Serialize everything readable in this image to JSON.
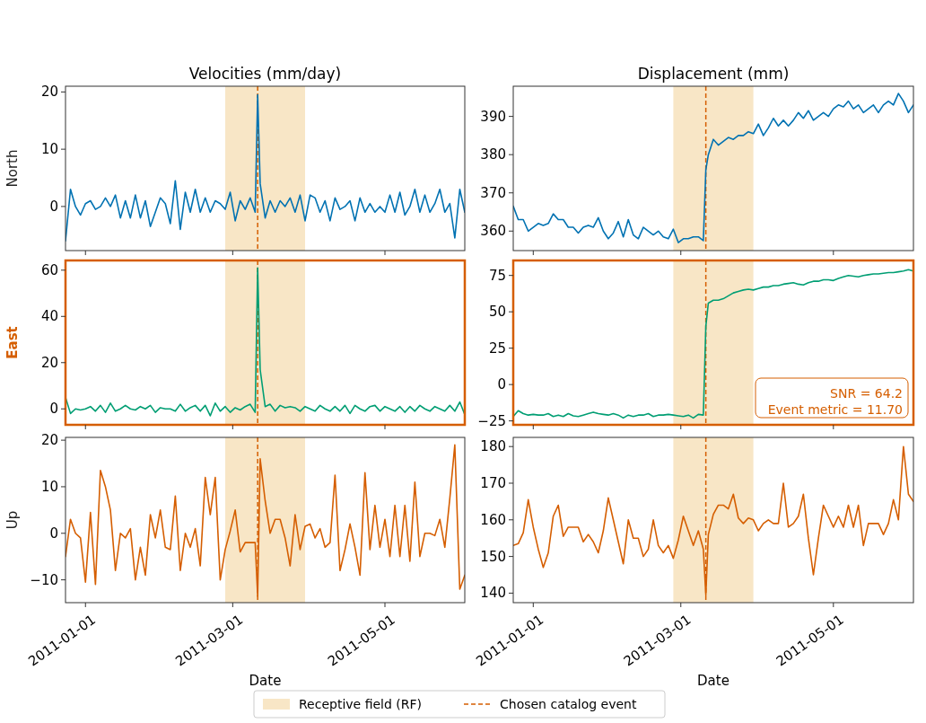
{
  "chart_data": [
    {
      "type": "line",
      "title": "Velocities (mm/day)",
      "ylabel": "North",
      "tick_labels": "y",
      "x": [
        "2010-12-24",
        "2010-12-26",
        "2010-12-28",
        "2010-12-30",
        "2011-01-01",
        "2011-01-03",
        "2011-01-05",
        "2011-01-07",
        "2011-01-09",
        "2011-01-11",
        "2011-01-13",
        "2011-01-15",
        "2011-01-17",
        "2011-01-19",
        "2011-01-21",
        "2011-01-23",
        "2011-01-25",
        "2011-01-27",
        "2011-01-29",
        "2011-01-31",
        "2011-02-02",
        "2011-02-04",
        "2011-02-06",
        "2011-02-08",
        "2011-02-10",
        "2011-02-12",
        "2011-02-14",
        "2011-02-16",
        "2011-02-18",
        "2011-02-20",
        "2011-02-22",
        "2011-02-24",
        "2011-02-26",
        "2011-02-28",
        "2011-03-02",
        "2011-03-04",
        "2011-03-06",
        "2011-03-08",
        "2011-03-10",
        "2011-03-11",
        "2011-03-12",
        "2011-03-14",
        "2011-03-16",
        "2011-03-18",
        "2011-03-20",
        "2011-03-22",
        "2011-03-24",
        "2011-03-26",
        "2011-03-28",
        "2011-03-30",
        "2011-04-01",
        "2011-04-03",
        "2011-04-05",
        "2011-04-07",
        "2011-04-09",
        "2011-04-11",
        "2011-04-13",
        "2011-04-15",
        "2011-04-17",
        "2011-04-19",
        "2011-04-21",
        "2011-04-23",
        "2011-04-25",
        "2011-04-27",
        "2011-04-29",
        "2011-05-01",
        "2011-05-03",
        "2011-05-05",
        "2011-05-07",
        "2011-05-09",
        "2011-05-11",
        "2011-05-13",
        "2011-05-15",
        "2011-05-17",
        "2011-05-19",
        "2011-05-21",
        "2011-05-23",
        "2011-05-25",
        "2011-05-27",
        "2011-05-29",
        "2011-05-31",
        "2011-06-02"
      ],
      "series": [
        {
          "color": "#0072b2",
          "values": [
            -6,
            3,
            0,
            -1.5,
            0.5,
            1,
            -0.5,
            0,
            1.5,
            0,
            2,
            -2,
            1,
            -2,
            2,
            -2,
            1,
            -3.5,
            -1,
            1.5,
            0.5,
            -3,
            4.5,
            -4,
            2.5,
            -1,
            3,
            -1,
            1.5,
            -1,
            1,
            0.5,
            -0.5,
            2.5,
            -2.5,
            1,
            -0.5,
            1.5,
            -1,
            19.5,
            4,
            -2,
            1,
            -1,
            1,
            0,
            1.5,
            -1,
            2,
            -2.5,
            2,
            1.5,
            -1,
            1,
            -2.5,
            1.5,
            -0.5,
            0,
            1,
            -2.5,
            1.5,
            -1,
            0.5,
            -1,
            0,
            -1,
            2,
            -1,
            2.5,
            -1.5,
            0,
            3,
            -1,
            2,
            -1,
            0.5,
            3,
            -1,
            0.5,
            -5.5,
            3,
            -1
          ]
        }
      ],
      "xlim": [
        "2010-12-24",
        "2011-06-02"
      ],
      "xticks": [
        "2011-01-01",
        "2011-03-01",
        "2011-05-01"
      ],
      "ylim": [
        -7.7,
        21
      ],
      "yticks": [
        0,
        10,
        20
      ],
      "bands": [
        {
          "axis": "x",
          "from": "2011-02-26",
          "to": "2011-03-30",
          "color": "#f8e6c6"
        }
      ],
      "ref_lines": [
        {
          "axis": "x",
          "value": "2011-03-11",
          "color": "#d55e00",
          "line_style": "dashed"
        }
      ]
    },
    {
      "type": "line",
      "title": "Displacement (mm)",
      "tick_labels": "y",
      "x": [
        "2010-12-24",
        "2010-12-26",
        "2010-12-28",
        "2010-12-30",
        "2011-01-01",
        "2011-01-03",
        "2011-01-05",
        "2011-01-07",
        "2011-01-09",
        "2011-01-11",
        "2011-01-13",
        "2011-01-15",
        "2011-01-17",
        "2011-01-19",
        "2011-01-21",
        "2011-01-23",
        "2011-01-25",
        "2011-01-27",
        "2011-01-29",
        "2011-01-31",
        "2011-02-02",
        "2011-02-04",
        "2011-02-06",
        "2011-02-08",
        "2011-02-10",
        "2011-02-12",
        "2011-02-14",
        "2011-02-16",
        "2011-02-18",
        "2011-02-20",
        "2011-02-22",
        "2011-02-24",
        "2011-02-26",
        "2011-02-28",
        "2011-03-02",
        "2011-03-04",
        "2011-03-06",
        "2011-03-08",
        "2011-03-10",
        "2011-03-11",
        "2011-03-12",
        "2011-03-14",
        "2011-03-16",
        "2011-03-18",
        "2011-03-20",
        "2011-03-22",
        "2011-03-24",
        "2011-03-26",
        "2011-03-28",
        "2011-03-30",
        "2011-04-01",
        "2011-04-03",
        "2011-04-05",
        "2011-04-07",
        "2011-04-09",
        "2011-04-11",
        "2011-04-13",
        "2011-04-15",
        "2011-04-17",
        "2011-04-19",
        "2011-04-21",
        "2011-04-23",
        "2011-04-25",
        "2011-04-27",
        "2011-04-29",
        "2011-05-01",
        "2011-05-03",
        "2011-05-05",
        "2011-05-07",
        "2011-05-09",
        "2011-05-11",
        "2011-05-13",
        "2011-05-15",
        "2011-05-17",
        "2011-05-19",
        "2011-05-21",
        "2011-05-23",
        "2011-05-25",
        "2011-05-27",
        "2011-05-29",
        "2011-05-31",
        "2011-06-02"
      ],
      "series": [
        {
          "color": "#0072b2",
          "values": [
            366.5,
            363,
            363,
            360,
            361,
            362,
            361.5,
            362,
            364.5,
            363,
            363,
            361,
            361,
            359.5,
            361,
            361.5,
            361,
            363.5,
            360,
            358,
            359.5,
            362.5,
            358.5,
            363,
            359,
            358,
            361,
            360,
            359,
            360,
            358.5,
            358,
            360.5,
            357,
            358,
            358,
            358.5,
            358.5,
            357.5,
            376,
            380,
            384,
            382.5,
            383.5,
            384.5,
            384,
            385,
            385,
            386,
            385.5,
            388,
            385,
            387,
            389.5,
            387.5,
            389,
            387.5,
            389,
            391,
            389.5,
            391.5,
            389,
            390,
            391,
            390,
            392,
            393,
            392.5,
            394,
            392,
            393,
            391,
            392,
            393,
            391,
            393,
            394,
            393,
            396,
            394,
            391,
            393
          ]
        }
      ],
      "xlim": [
        "2010-12-24",
        "2011-06-02"
      ],
      "xticks": [
        "2011-01-01",
        "2011-03-01",
        "2011-05-01"
      ],
      "ylim": [
        354.9,
        397.9
      ],
      "yticks": [
        360,
        370,
        380,
        390
      ],
      "bands": [
        {
          "axis": "x",
          "from": "2011-02-26",
          "to": "2011-03-30",
          "color": "#f8e6c6"
        }
      ],
      "ref_lines": [
        {
          "axis": "x",
          "value": "2011-03-11",
          "color": "#d55e00",
          "line_style": "dashed"
        }
      ]
    },
    {
      "type": "line",
      "ylabel": "East",
      "tick_labels": "y",
      "x": [
        "2010-12-24",
        "2010-12-26",
        "2010-12-28",
        "2010-12-30",
        "2011-01-01",
        "2011-01-03",
        "2011-01-05",
        "2011-01-07",
        "2011-01-09",
        "2011-01-11",
        "2011-01-13",
        "2011-01-15",
        "2011-01-17",
        "2011-01-19",
        "2011-01-21",
        "2011-01-23",
        "2011-01-25",
        "2011-01-27",
        "2011-01-29",
        "2011-01-31",
        "2011-02-02",
        "2011-02-04",
        "2011-02-06",
        "2011-02-08",
        "2011-02-10",
        "2011-02-12",
        "2011-02-14",
        "2011-02-16",
        "2011-02-18",
        "2011-02-20",
        "2011-02-22",
        "2011-02-24",
        "2011-02-26",
        "2011-02-28",
        "2011-03-02",
        "2011-03-04",
        "2011-03-06",
        "2011-03-08",
        "2011-03-10",
        "2011-03-11",
        "2011-03-12",
        "2011-03-14",
        "2011-03-16",
        "2011-03-18",
        "2011-03-20",
        "2011-03-22",
        "2011-03-24",
        "2011-03-26",
        "2011-03-28",
        "2011-03-30",
        "2011-04-01",
        "2011-04-03",
        "2011-04-05",
        "2011-04-07",
        "2011-04-09",
        "2011-04-11",
        "2011-04-13",
        "2011-04-15",
        "2011-04-17",
        "2011-04-19",
        "2011-04-21",
        "2011-04-23",
        "2011-04-25",
        "2011-04-27",
        "2011-04-29",
        "2011-05-01",
        "2011-05-03",
        "2011-05-05",
        "2011-05-07",
        "2011-05-09",
        "2011-05-11",
        "2011-05-13",
        "2011-05-15",
        "2011-05-17",
        "2011-05-19",
        "2011-05-21",
        "2011-05-23",
        "2011-05-25",
        "2011-05-27",
        "2011-05-29",
        "2011-05-31",
        "2011-06-02"
      ],
      "series": [
        {
          "color": "#009e73",
          "values": [
            5,
            -2,
            0,
            -0.5,
            0,
            1,
            -1,
            1.5,
            -1.5,
            2.5,
            -1,
            0,
            1.5,
            0,
            -0.5,
            1,
            0,
            1.5,
            -1.5,
            0.5,
            0,
            0,
            -1,
            2,
            -1,
            0.5,
            1.5,
            -1,
            1.5,
            -3,
            2.5,
            -1,
            1,
            -1.5,
            0.5,
            -0.5,
            1,
            2,
            -1.5,
            61,
            17,
            1,
            2,
            -1,
            1.5,
            0.5,
            1,
            0.5,
            -1,
            1,
            0,
            -1,
            1.5,
            0,
            -1,
            1,
            -1,
            1.5,
            -2,
            1.5,
            0,
            -1,
            1,
            1.5,
            -1,
            1,
            0,
            -1,
            1,
            -1.5,
            1,
            -1,
            1.5,
            0,
            -1,
            1,
            0,
            -1,
            1.5,
            -1,
            3,
            -2.5
          ]
        }
      ],
      "xlim": [
        "2010-12-24",
        "2011-06-02"
      ],
      "xticks": [
        "2011-01-01",
        "2011-03-01",
        "2011-05-01"
      ],
      "ylim": [
        -6.9,
        64.2
      ],
      "yticks": [
        0,
        20,
        40,
        60
      ],
      "bands": [
        {
          "axis": "x",
          "from": "2011-02-26",
          "to": "2011-03-30",
          "color": "#f8e6c6"
        }
      ],
      "ref_lines": [
        {
          "axis": "x",
          "value": "2011-03-11",
          "color": "#d55e00",
          "line_style": "dashed"
        }
      ]
    },
    {
      "type": "line",
      "tick_labels": "y",
      "x": [
        "2010-12-24",
        "2010-12-26",
        "2010-12-28",
        "2010-12-30",
        "2011-01-01",
        "2011-01-03",
        "2011-01-05",
        "2011-01-07",
        "2011-01-09",
        "2011-01-11",
        "2011-01-13",
        "2011-01-15",
        "2011-01-17",
        "2011-01-19",
        "2011-01-21",
        "2011-01-23",
        "2011-01-25",
        "2011-01-27",
        "2011-01-29",
        "2011-01-31",
        "2011-02-02",
        "2011-02-04",
        "2011-02-06",
        "2011-02-08",
        "2011-02-10",
        "2011-02-12",
        "2011-02-14",
        "2011-02-16",
        "2011-02-18",
        "2011-02-20",
        "2011-02-22",
        "2011-02-24",
        "2011-02-26",
        "2011-02-28",
        "2011-03-02",
        "2011-03-04",
        "2011-03-06",
        "2011-03-08",
        "2011-03-10",
        "2011-03-11",
        "2011-03-12",
        "2011-03-14",
        "2011-03-16",
        "2011-03-18",
        "2011-03-20",
        "2011-03-22",
        "2011-03-24",
        "2011-03-26",
        "2011-03-28",
        "2011-03-30",
        "2011-04-01",
        "2011-04-03",
        "2011-04-05",
        "2011-04-07",
        "2011-04-09",
        "2011-04-11",
        "2011-04-13",
        "2011-04-15",
        "2011-04-17",
        "2011-04-19",
        "2011-04-21",
        "2011-04-23",
        "2011-04-25",
        "2011-04-27",
        "2011-04-29",
        "2011-05-01",
        "2011-05-03",
        "2011-05-05",
        "2011-05-07",
        "2011-05-09",
        "2011-05-11",
        "2011-05-13",
        "2011-05-15",
        "2011-05-17",
        "2011-05-19",
        "2011-05-21",
        "2011-05-23",
        "2011-05-25",
        "2011-05-27",
        "2011-05-29",
        "2011-05-31",
        "2011-06-02"
      ],
      "series": [
        {
          "color": "#009e73",
          "values": [
            -22,
            -18,
            -20,
            -21,
            -20.5,
            -21,
            -21,
            -20,
            -22,
            -21,
            -22,
            -20,
            -21.5,
            -22,
            -21,
            -20,
            -19,
            -20,
            -20.5,
            -21,
            -20,
            -21,
            -23,
            -21,
            -22,
            -21,
            -21,
            -20,
            -22,
            -21,
            -21,
            -20.5,
            -21,
            -21.5,
            -22,
            -21,
            -23,
            -20.5,
            -21,
            40,
            56,
            58,
            58,
            59,
            61,
            63,
            64,
            65,
            65.5,
            65,
            66,
            67,
            67,
            68,
            68,
            69,
            69.5,
            70,
            69,
            68.5,
            70,
            71,
            71,
            72,
            72,
            71.5,
            73,
            74,
            75,
            74.5,
            74,
            75,
            75.5,
            76,
            76,
            76.5,
            77,
            77,
            77.5,
            78,
            79,
            78
          ]
        }
      ],
      "xlim": [
        "2010-12-24",
        "2011-06-02"
      ],
      "xticks": [
        "2011-01-01",
        "2011-03-01",
        "2011-05-01"
      ],
      "ylim": [
        -27.7,
        85.3
      ],
      "yticks": [
        {
          "value": -25,
          "label": "−25"
        },
        0,
        25,
        50,
        75
      ],
      "bands": [
        {
          "axis": "x",
          "from": "2011-02-26",
          "to": "2011-03-30",
          "color": "#f8e6c6"
        }
      ],
      "ref_lines": [
        {
          "axis": "x",
          "value": "2011-03-11",
          "color": "#d55e00",
          "line_style": "dashed"
        }
      ],
      "annotations": [
        "SNR = 64.2",
        "Event metric = 11.70"
      ]
    },
    {
      "type": "line",
      "ylabel": "Up",
      "xlabel": "Date",
      "x": [
        "2010-12-24",
        "2010-12-26",
        "2010-12-28",
        "2010-12-30",
        "2011-01-01",
        "2011-01-03",
        "2011-01-05",
        "2011-01-07",
        "2011-01-09",
        "2011-01-11",
        "2011-01-13",
        "2011-01-15",
        "2011-01-17",
        "2011-01-19",
        "2011-01-21",
        "2011-01-23",
        "2011-01-25",
        "2011-01-27",
        "2011-01-29",
        "2011-01-31",
        "2011-02-02",
        "2011-02-04",
        "2011-02-06",
        "2011-02-08",
        "2011-02-10",
        "2011-02-12",
        "2011-02-14",
        "2011-02-16",
        "2011-02-18",
        "2011-02-20",
        "2011-02-22",
        "2011-02-24",
        "2011-02-26",
        "2011-02-28",
        "2011-03-02",
        "2011-03-04",
        "2011-03-06",
        "2011-03-08",
        "2011-03-10",
        "2011-03-11",
        "2011-03-12",
        "2011-03-14",
        "2011-03-16",
        "2011-03-18",
        "2011-03-20",
        "2011-03-22",
        "2011-03-24",
        "2011-03-26",
        "2011-03-28",
        "2011-03-30",
        "2011-04-01",
        "2011-04-03",
        "2011-04-05",
        "2011-04-07",
        "2011-04-09",
        "2011-04-11",
        "2011-04-13",
        "2011-04-15",
        "2011-04-17",
        "2011-04-19",
        "2011-04-21",
        "2011-04-23",
        "2011-04-25",
        "2011-04-27",
        "2011-04-29",
        "2011-05-01",
        "2011-05-03",
        "2011-05-05",
        "2011-05-07",
        "2011-05-09",
        "2011-05-11",
        "2011-05-13",
        "2011-05-15",
        "2011-05-17",
        "2011-05-19",
        "2011-05-21",
        "2011-05-23",
        "2011-05-25",
        "2011-05-27",
        "2011-05-29",
        "2011-05-31",
        "2011-06-02"
      ],
      "series": [
        {
          "color": "#d55e00",
          "values": [
            -5,
            3,
            0,
            -1,
            -10.5,
            4.5,
            -11,
            13.5,
            10,
            5,
            -8,
            0,
            -1,
            1,
            -10,
            -3,
            -9,
            4,
            -1,
            5,
            -3,
            -3.5,
            8,
            -8,
            0,
            -3,
            1,
            -7,
            12,
            4,
            12,
            -10,
            -3.5,
            0.5,
            5,
            -4,
            -2,
            -2,
            -2,
            -13.5,
            16,
            7,
            0,
            3,
            3,
            -1,
            -7,
            4,
            -3.5,
            1.5,
            2,
            -1,
            1,
            -3,
            -2,
            12.5,
            -8,
            -3.5,
            2,
            -3,
            -9,
            13,
            -3.5,
            6,
            -3,
            3,
            -5,
            6,
            -5,
            6,
            -6,
            11,
            -5,
            0,
            0,
            -0.5,
            3,
            -3,
            7.5,
            19,
            -12,
            -9
          ]
        }
      ],
      "xlim": [
        "2010-12-24",
        "2011-06-02"
      ],
      "xticks": [
        "2011-01-01",
        "2011-03-01",
        "2011-05-01"
      ],
      "ylim": [
        -14.9,
        20.6
      ],
      "yticks": [
        {
          "value": -10,
          "label": "−10"
        },
        0,
        10,
        20
      ],
      "bands": [
        {
          "axis": "x",
          "from": "2011-02-26",
          "to": "2011-03-30",
          "color": "#f8e6c6"
        }
      ],
      "ref_lines": [
        {
          "axis": "x",
          "value": "2011-03-11",
          "color": "#d55e00",
          "line_style": "dashed"
        }
      ]
    },
    {
      "type": "line",
      "xlabel": "Date",
      "legend": "bottom",
      "x": [
        "2010-12-24",
        "2010-12-26",
        "2010-12-28",
        "2010-12-30",
        "2011-01-01",
        "2011-01-03",
        "2011-01-05",
        "2011-01-07",
        "2011-01-09",
        "2011-01-11",
        "2011-01-13",
        "2011-01-15",
        "2011-01-17",
        "2011-01-19",
        "2011-01-21",
        "2011-01-23",
        "2011-01-25",
        "2011-01-27",
        "2011-01-29",
        "2011-01-31",
        "2011-02-02",
        "2011-02-04",
        "2011-02-06",
        "2011-02-08",
        "2011-02-10",
        "2011-02-12",
        "2011-02-14",
        "2011-02-16",
        "2011-02-18",
        "2011-02-20",
        "2011-02-22",
        "2011-02-24",
        "2011-02-26",
        "2011-02-28",
        "2011-03-02",
        "2011-03-04",
        "2011-03-06",
        "2011-03-08",
        "2011-03-10",
        "2011-03-11",
        "2011-03-12",
        "2011-03-14",
        "2011-03-16",
        "2011-03-18",
        "2011-03-20",
        "2011-03-22",
        "2011-03-24",
        "2011-03-26",
        "2011-03-28",
        "2011-03-30",
        "2011-04-01",
        "2011-04-03",
        "2011-04-05",
        "2011-04-07",
        "2011-04-09",
        "2011-04-11",
        "2011-04-13",
        "2011-04-15",
        "2011-04-17",
        "2011-04-19",
        "2011-04-21",
        "2011-04-23",
        "2011-04-25",
        "2011-04-27",
        "2011-04-29",
        "2011-05-01",
        "2011-05-03",
        "2011-05-05",
        "2011-05-07",
        "2011-05-09",
        "2011-05-11",
        "2011-05-13",
        "2011-05-15",
        "2011-05-17",
        "2011-05-19",
        "2011-05-21",
        "2011-05-23",
        "2011-05-25",
        "2011-05-27",
        "2011-05-29",
        "2011-05-31",
        "2011-06-02"
      ],
      "series": [
        {
          "color": "#d55e00",
          "values": [
            153,
            153.5,
            156.5,
            165.5,
            158,
            152,
            147,
            151,
            161,
            164,
            155.5,
            158,
            158,
            158,
            154,
            156,
            154,
            151,
            157,
            166,
            160,
            154,
            148,
            160,
            155,
            155,
            150,
            152,
            160,
            153,
            151,
            153,
            149.5,
            154.5,
            161,
            157,
            153,
            157,
            152,
            139.5,
            156,
            161.5,
            164,
            164,
            163,
            167,
            160.5,
            159,
            160.5,
            160,
            157,
            159,
            160,
            159,
            159,
            170,
            158,
            159,
            161,
            167,
            155,
            145,
            155,
            164,
            161,
            158,
            161,
            158,
            164,
            158,
            164,
            153,
            159,
            159,
            159,
            156,
            159,
            165.5,
            160,
            180,
            167,
            165
          ]
        }
      ],
      "xlim": [
        "2010-12-24",
        "2011-06-02"
      ],
      "xticks": [
        "2011-01-01",
        "2011-03-01",
        "2011-05-01"
      ],
      "ylim": [
        137.4,
        182.5
      ],
      "yticks": [
        140,
        150,
        160,
        170,
        180
      ],
      "bands": [
        {
          "axis": "x",
          "from": "2011-02-26",
          "to": "2011-03-30",
          "color": "#f8e6c6",
          "label": "Receptive field (RF)"
        }
      ],
      "ref_lines": [
        {
          "axis": "x",
          "value": "2011-03-11",
          "color": "#d55e00",
          "line_style": "dashed",
          "label": "Chosen catalog event"
        }
      ]
    }
  ]
}
